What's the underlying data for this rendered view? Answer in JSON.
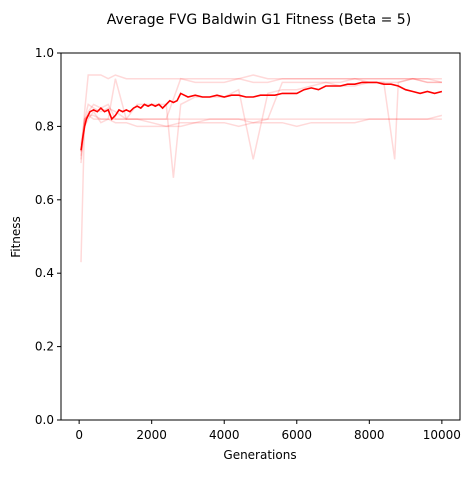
{
  "chart_data": {
    "type": "line",
    "title": "Average FVG Baldwin G1 Fitness (Beta = 5)",
    "xlabel": "Generations",
    "ylabel": "Fitness",
    "xlim": [
      -500,
      10500
    ],
    "ylim": [
      0.0,
      1.0
    ],
    "xticks": [
      0,
      2000,
      4000,
      6000,
      8000,
      10000
    ],
    "yticks": [
      0.0,
      0.2,
      0.4,
      0.6,
      0.8,
      1.0
    ],
    "xtick_labels": [
      "0",
      "2000",
      "4000",
      "6000",
      "8000",
      "10000"
    ],
    "ytick_labels": [
      "0.0",
      "0.2",
      "0.4",
      "0.6",
      "0.8",
      "1.0"
    ],
    "grid": false,
    "legend": "none",
    "colors": {
      "average": "#ff0000",
      "individual": "#ff0000",
      "individual_opacity": 0.15
    },
    "series": [
      {
        "role": "individual",
        "x": [
          50,
          150,
          250,
          400,
          600,
          800,
          1000,
          1300,
          1600,
          2000,
          2400,
          2800,
          3200,
          3600,
          4000,
          4400,
          4800,
          5200,
          5600,
          6000,
          6400,
          6800,
          7200,
          7600,
          8000,
          8400,
          8800,
          9200,
          9600,
          10000
        ],
        "y": [
          0.43,
          0.82,
          0.83,
          0.82,
          0.82,
          0.82,
          0.82,
          0.82,
          0.82,
          0.82,
          0.82,
          0.82,
          0.82,
          0.82,
          0.82,
          0.82,
          0.82,
          0.82,
          0.82,
          0.82,
          0.82,
          0.82,
          0.82,
          0.82,
          0.82,
          0.82,
          0.82,
          0.82,
          0.82,
          0.82
        ]
      },
      {
        "role": "individual",
        "x": [
          50,
          150,
          250,
          400,
          600,
          800,
          1000,
          1300,
          1600,
          2000,
          2400,
          2800,
          3200,
          3600,
          4000,
          4400,
          4800,
          5200,
          5600,
          6000,
          6400,
          6800,
          7200,
          7600,
          8000,
          8400,
          8800,
          9200,
          9600,
          10000
        ],
        "y": [
          0.71,
          0.84,
          0.94,
          0.94,
          0.94,
          0.93,
          0.94,
          0.93,
          0.93,
          0.93,
          0.93,
          0.93,
          0.93,
          0.93,
          0.93,
          0.93,
          0.94,
          0.93,
          0.93,
          0.93,
          0.93,
          0.93,
          0.93,
          0.93,
          0.93,
          0.93,
          0.93,
          0.93,
          0.93,
          0.93
        ]
      },
      {
        "role": "individual",
        "x": [
          50,
          150,
          250,
          400,
          600,
          800,
          1000,
          1300,
          1600,
          2000,
          2400,
          2800,
          3200,
          3600,
          4000,
          4400,
          4800,
          5200,
          5600,
          6000,
          6400,
          6800,
          7200,
          7600,
          8000,
          8400,
          8800,
          9200,
          9600,
          10000
        ],
        "y": [
          0.72,
          0.8,
          0.82,
          0.84,
          0.81,
          0.82,
          0.93,
          0.82,
          0.82,
          0.82,
          0.82,
          0.93,
          0.92,
          0.92,
          0.92,
          0.93,
          0.92,
          0.92,
          0.93,
          0.93,
          0.93,
          0.93,
          0.93,
          0.93,
          0.93,
          0.93,
          0.93,
          0.93,
          0.92,
          0.92
        ]
      },
      {
        "role": "individual",
        "x": [
          50,
          150,
          250,
          400,
          600,
          800,
          1000,
          1300,
          1600,
          2000,
          2400,
          2800,
          3200,
          3600,
          4000,
          4400,
          4800,
          5200,
          5600,
          6000,
          6400,
          6800,
          7200,
          7600,
          8000,
          8400,
          8800,
          9200,
          9600,
          10000
        ],
        "y": [
          0.75,
          0.82,
          0.83,
          0.83,
          0.82,
          0.82,
          0.81,
          0.81,
          0.8,
          0.8,
          0.8,
          0.81,
          0.81,
          0.81,
          0.81,
          0.8,
          0.81,
          0.81,
          0.81,
          0.8,
          0.81,
          0.81,
          0.81,
          0.81,
          0.82,
          0.82,
          0.82,
          0.82,
          0.82,
          0.83
        ]
      },
      {
        "role": "individual",
        "x": [
          50,
          150,
          250,
          400,
          600,
          800,
          1000,
          1300,
          1600,
          2000,
          2400,
          2800,
          3200,
          3600,
          4000,
          4400,
          4800,
          5200,
          5600,
          6000,
          6400,
          6800,
          7200,
          7600,
          8000,
          8400,
          8800,
          9200,
          9600,
          10000
        ],
        "y": [
          0.73,
          0.82,
          0.86,
          0.85,
          0.84,
          0.85,
          0.84,
          0.82,
          0.82,
          0.81,
          0.8,
          0.8,
          0.81,
          0.82,
          0.82,
          0.82,
          0.81,
          0.82,
          0.92,
          0.92,
          0.92,
          0.92,
          0.92,
          0.93,
          0.92,
          0.92,
          0.92,
          0.93,
          0.93,
          0.92
        ]
      },
      {
        "role": "individual",
        "x": [
          50,
          150,
          250,
          400,
          600,
          800,
          1000,
          1300,
          1600,
          2000,
          2400,
          2600,
          2800,
          3200,
          3600,
          4000,
          4400,
          4800,
          5200,
          5600,
          6000,
          6400,
          6800,
          7200,
          7600,
          8000,
          8400,
          8700,
          8800,
          9200,
          9600,
          10000
        ],
        "y": [
          0.7,
          0.81,
          0.84,
          0.86,
          0.85,
          0.86,
          0.82,
          0.82,
          0.86,
          0.86,
          0.86,
          0.66,
          0.86,
          0.88,
          0.88,
          0.88,
          0.9,
          0.71,
          0.89,
          0.9,
          0.9,
          0.91,
          0.92,
          0.91,
          0.91,
          0.92,
          0.92,
          0.71,
          0.92,
          0.93,
          0.92,
          0.92
        ]
      },
      {
        "role": "average",
        "x": [
          50,
          100,
          150,
          200,
          250,
          300,
          400,
          500,
          600,
          700,
          800,
          900,
          1000,
          1100,
          1200,
          1300,
          1400,
          1500,
          1600,
          1700,
          1800,
          1900,
          2000,
          2100,
          2200,
          2300,
          2400,
          2500,
          2600,
          2700,
          2800,
          2900,
          3000,
          3200,
          3400,
          3600,
          3800,
          4000,
          4200,
          4400,
          4600,
          4800,
          5000,
          5200,
          5400,
          5600,
          5800,
          6000,
          6200,
          6400,
          6600,
          6800,
          7000,
          7200,
          7400,
          7600,
          7800,
          8000,
          8200,
          8400,
          8600,
          8800,
          9000,
          9200,
          9400,
          9600,
          9800,
          10000
        ],
        "y": [
          0.735,
          0.77,
          0.8,
          0.82,
          0.83,
          0.84,
          0.845,
          0.84,
          0.85,
          0.84,
          0.845,
          0.82,
          0.83,
          0.845,
          0.84,
          0.845,
          0.84,
          0.85,
          0.855,
          0.85,
          0.86,
          0.855,
          0.86,
          0.855,
          0.86,
          0.85,
          0.86,
          0.87,
          0.865,
          0.87,
          0.89,
          0.885,
          0.88,
          0.885,
          0.88,
          0.88,
          0.885,
          0.88,
          0.885,
          0.885,
          0.88,
          0.88,
          0.885,
          0.885,
          0.885,
          0.89,
          0.89,
          0.89,
          0.9,
          0.905,
          0.9,
          0.91,
          0.91,
          0.91,
          0.915,
          0.915,
          0.92,
          0.92,
          0.92,
          0.915,
          0.915,
          0.91,
          0.9,
          0.895,
          0.89,
          0.895,
          0.89,
          0.895
        ]
      }
    ]
  }
}
